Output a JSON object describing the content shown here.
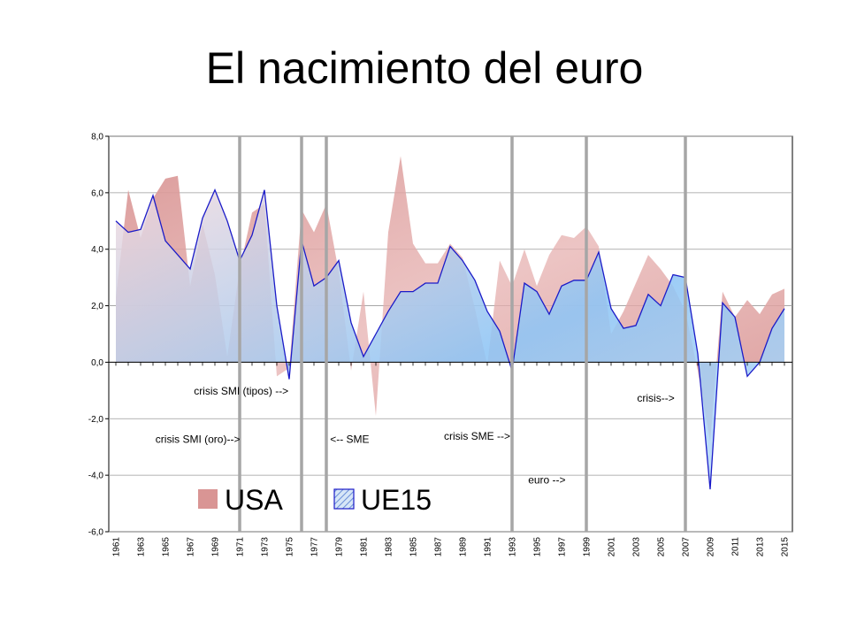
{
  "page": {
    "title": "El nacimiento del euro"
  },
  "chart_data": {
    "type": "area",
    "x": [
      1961,
      1962,
      1963,
      1964,
      1965,
      1966,
      1967,
      1968,
      1969,
      1970,
      1971,
      1972,
      1973,
      1974,
      1975,
      1976,
      1977,
      1978,
      1979,
      1980,
      1981,
      1982,
      1983,
      1984,
      1985,
      1986,
      1987,
      1988,
      1989,
      1990,
      1991,
      1992,
      1993,
      1994,
      1995,
      1996,
      1997,
      1998,
      1999,
      2000,
      2001,
      2002,
      2003,
      2004,
      2005,
      2006,
      2007,
      2008,
      2009,
      2010,
      2011,
      2012,
      2013,
      2014,
      2015
    ],
    "x_tick_labels": [
      "1961",
      "1963",
      "1965",
      "1967",
      "1969",
      "1971",
      "1973",
      "1975",
      "1977",
      "1979",
      "1981",
      "1983",
      "1985",
      "1987",
      "1989",
      "1991",
      "1993",
      "1995",
      "1997",
      "1999",
      "2001",
      "2003",
      "2005",
      "2007",
      "2009",
      "2011",
      "2013",
      "2015"
    ],
    "y_tick_labels": [
      "8,0",
      "6,0",
      "4,0",
      "2,0",
      "0,0",
      "-2,0",
      "-4,0",
      "-6,0"
    ],
    "ylim": [
      -6,
      8
    ],
    "y_ticks": [
      8,
      6,
      4,
      2,
      0,
      -2,
      -4,
      -6
    ],
    "series": [
      {
        "name": "USA",
        "color": "#d99594",
        "values": [
          2.3,
          6.1,
          4.4,
          5.8,
          6.5,
          6.6,
          2.7,
          4.9,
          3.1,
          0.2,
          3.3,
          5.3,
          5.6,
          -0.5,
          -0.2,
          5.4,
          4.6,
          5.6,
          3.2,
          -0.3,
          2.5,
          -1.9,
          4.6,
          7.3,
          4.2,
          3.5,
          3.5,
          4.2,
          3.7,
          1.9,
          -0.1,
          3.6,
          2.7,
          4.0,
          2.7,
          3.8,
          4.5,
          4.4,
          4.8,
          4.1,
          1.0,
          1.8,
          2.8,
          3.8,
          3.3,
          2.7,
          1.8,
          -0.3,
          -2.8,
          2.5,
          1.6,
          2.2,
          1.7,
          2.4,
          2.6
        ]
      },
      {
        "name": "UE15",
        "color": "#8ec5f5",
        "values": [
          5.0,
          4.6,
          4.7,
          5.9,
          4.3,
          3.8,
          3.3,
          5.1,
          6.1,
          5.0,
          3.6,
          4.5,
          6.1,
          2.0,
          -0.6,
          4.3,
          2.7,
          3.0,
          3.6,
          1.4,
          0.2,
          1.0,
          1.8,
          2.5,
          2.5,
          2.8,
          2.8,
          4.1,
          3.6,
          2.9,
          1.8,
          1.1,
          -0.3,
          2.8,
          2.5,
          1.7,
          2.7,
          2.9,
          2.9,
          3.9,
          1.9,
          1.2,
          1.3,
          2.4,
          2.0,
          3.1,
          3.0,
          0.3,
          -4.5,
          2.1,
          1.6,
          -0.5,
          0.0,
          1.2,
          1.9
        ]
      }
    ],
    "vertical_markers": [
      1971,
      1976,
      1978,
      1993,
      1999,
      2007
    ],
    "annotations": [
      {
        "text": "crisis SMI (tipos) -->",
        "year": 1967.3,
        "y": -1.15
      },
      {
        "text": "crisis SMI (oro)-->",
        "year": 1964.2,
        "y": -2.85
      },
      {
        "text": "<-- SME",
        "year": 1978.3,
        "y": -2.85
      },
      {
        "text": "crisis SME -->",
        "year": 1987.5,
        "y": -2.75
      },
      {
        "text": "euro -->",
        "year": 1994.3,
        "y": -4.3
      },
      {
        "text": "crisis-->",
        "year": 2003.1,
        "y": -1.4
      }
    ],
    "legend": {
      "placement": "bottom-left",
      "entries": [
        "USA",
        "UE15"
      ]
    },
    "grid": {
      "horizontal": true,
      "vertical": false
    }
  }
}
